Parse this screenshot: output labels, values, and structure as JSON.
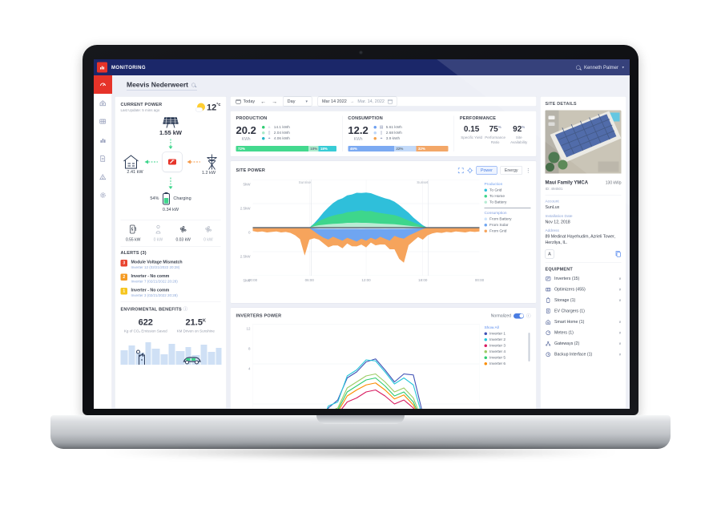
{
  "topbar": {
    "brand": "MONITORING",
    "user_name": "Kenneth Palmer",
    "caret_glyph": "▾",
    "search_icon": "magnifier-icon"
  },
  "page_header": {
    "site_name": "Meevis Nederweert"
  },
  "sidebar": {
    "items": [
      {
        "icon": "dashboard-gauge-icon",
        "active": true
      },
      {
        "icon": "site-layout-icon"
      },
      {
        "icon": "panel-grid-icon"
      },
      {
        "icon": "charts-icon"
      },
      {
        "icon": "reports-icon"
      },
      {
        "icon": "alerts-triangle-icon"
      },
      {
        "icon": "settings-gear-icon"
      }
    ]
  },
  "current_power": {
    "title": "CURRENT POWER",
    "subtitle": "Last Update: 5 mins ago",
    "temperature": "12",
    "temp_unit": "°c",
    "pv_power": "1.55 kW",
    "home_power": "2.41 kW",
    "grid_power": "1.2 kW",
    "battery_soc": "54%",
    "battery_status": "Charging",
    "battery_power": "0.34 kW",
    "loads": [
      {
        "icon": "ev-charger-icon",
        "value": "0.55 kW",
        "active": true
      },
      {
        "icon": "water-heater-icon",
        "value": "0 kW",
        "active": false
      },
      {
        "icon": "fan-icon",
        "value": "0.03 kW",
        "active": true
      },
      {
        "icon": "fan-icon",
        "value": "0 kW",
        "active": false
      }
    ]
  },
  "alerts": {
    "title": "ALERTS (3)",
    "items": [
      {
        "badge": "3",
        "color": "#e8432e",
        "title": "Module Voltage Mismatch",
        "detail": "Inverter 12 (02/21/2022 20:28)"
      },
      {
        "badge": "2",
        "color": "#f59b23",
        "title": "Inverter - No comm",
        "detail": "Inverter 7 (02/21/2022 20:28)"
      },
      {
        "badge": "1",
        "color": "#f6c51d",
        "title": "Inverter - No comm",
        "detail": "Inverter 3 (02/21/2022 20:28)"
      }
    ]
  },
  "environment": {
    "title": "ENVIROMENTAL BENEFITS",
    "info_glyph": "ⓘ",
    "co2_value": "622",
    "co2_caption": "Kg of CO₂ Emission Saved",
    "km_value": "21.5",
    "km_suffix": "K",
    "km_caption": "KM Driven on Sunshine"
  },
  "toolbar": {
    "today_label": "Today",
    "prev_glyph": "←",
    "next_glyph": "→",
    "period_value": "Day",
    "caret_glyph": "▾",
    "date_start": "Mar 14 2022",
    "range_arrow": "→",
    "date_end": "Mar. 14, 2022"
  },
  "production": {
    "title": "PRODUCTION",
    "total": "20.2",
    "unit": "KWh",
    "rows": [
      {
        "icon": "home-icon",
        "value": "14.1 kWh",
        "dot": "#2ecc71"
      },
      {
        "icon": "battery-icon",
        "value": "2.04 kWh",
        "dot": "#a9e9c8"
      },
      {
        "icon": "grid-tower-icon",
        "value": "4.06 kWh",
        "dot": "#23b5c8"
      }
    ],
    "bar": [
      {
        "label": "72%",
        "w": "72%",
        "bg": "#43d98e",
        "fg": "#ffffff"
      },
      {
        "label": "10%",
        "w": "10%",
        "bg": "#aeeccd",
        "fg": "#64727e"
      },
      {
        "label": "18%",
        "w": "18%",
        "bg": "#38ccd6",
        "fg": "#ffffff"
      }
    ]
  },
  "consumption": {
    "title": "CONSUMPTION",
    "total": "12.2",
    "unit": "KWh",
    "rows": [
      {
        "icon": "solar-panel-icon",
        "value": "5.61 kWh",
        "dot": "#6d9ff0"
      },
      {
        "icon": "battery-icon",
        "value": "2.68 kWh",
        "dot": "#bcd6f9"
      },
      {
        "icon": "grid-tower-icon",
        "value": "3.9 kWh",
        "dot": "#f5a24b"
      }
    ],
    "bar": [
      {
        "label": "46%",
        "w": "46%",
        "bg": "#7caaf2",
        "fg": "#ffffff"
      },
      {
        "label": "22%",
        "w": "22%",
        "bg": "#c3daf9",
        "fg": "#64727e"
      },
      {
        "label": "32%",
        "w": "32%",
        "bg": "#f3a768",
        "fg": "#ffffff"
      }
    ]
  },
  "performance": {
    "title": "PERFORMANCE",
    "stats": [
      {
        "value": "0.15",
        "suffix": "",
        "label": "Specific Yield"
      },
      {
        "value": "75",
        "suffix": "%",
        "label": "Performance Ratio"
      },
      {
        "value": "92",
        "suffix": "%",
        "label": "Site Availability"
      }
    ]
  },
  "site_power": {
    "title": "SITE POWER",
    "power_label": "Power",
    "energy_label": "Energy",
    "kebab_glyph": "⋮",
    "production_header": "Production",
    "consumption_header": "Consumption"
  },
  "inverters_power": {
    "title": "INVERTERS POWER",
    "normalized_label": "Normalized",
    "info_glyph": "ⓘ",
    "show_all": "Show All"
  },
  "site_details": {
    "title": "SITE DETAILS",
    "name": "Maui Family YMCA",
    "capacity": "130 kWp",
    "id": "ID: 494501",
    "account_label": "Account",
    "account": "SunLux",
    "install_label": "Installation Date",
    "install_date": "Nov 12, 2018",
    "address_label": "Address",
    "address": "89 Medinat Hayehudim, Azrieli Tower, Herzliya, IL.",
    "marker_glyph": "A"
  },
  "equipment": {
    "title": "EQUIPMENT",
    "rows": [
      {
        "icon": "inverter-icon",
        "label": "Inverters (15)",
        "chevron": "∨"
      },
      {
        "icon": "optimizer-icon",
        "label": "Optimizers (455)",
        "chevron": "∨"
      },
      {
        "icon": "storage-battery-icon",
        "label": "Storage (1)",
        "chevron": "∨"
      },
      {
        "icon": "ev-charger-icon",
        "label": "EV Chargers (1)",
        "chevron": ""
      },
      {
        "icon": "smart-home-icon",
        "label": "Smart Home (1)",
        "chevron": "∨"
      },
      {
        "icon": "meter-icon",
        "label": "Meters (1)",
        "chevron": "∨"
      },
      {
        "icon": "gateway-icon",
        "label": "Gateways (2)",
        "chevron": "∨"
      },
      {
        "icon": "backup-interface-icon",
        "label": "Backup Interface (1)",
        "chevron": "∨"
      }
    ]
  },
  "chart_data": [
    {
      "id": "site-power",
      "type": "area",
      "title": "SITE POWER",
      "ylim": [
        -5,
        5
      ],
      "yticks": [
        "5kW",
        "2.5kW",
        "0",
        "2.5kW",
        "5kW"
      ],
      "xticks": [
        "00:00",
        "06:00",
        "12:00",
        "18:00",
        "00:00"
      ],
      "sunrise_hour": 6.2,
      "sunset_hour": 18.6,
      "sunrise_label": "Sunrise",
      "sunset_label": "Sunset",
      "x_step_hours": 0.5,
      "production_stack": [
        {
          "name": "To Battery",
          "color": "#b9ecd4",
          "values": [
            0,
            0,
            0,
            0,
            0,
            0,
            0,
            0,
            0,
            0,
            0,
            0,
            0,
            0.15,
            0.25,
            0.3,
            0.35,
            0.4,
            0.42,
            0.45,
            0.5,
            0.5,
            0.52,
            0.5,
            0.5,
            0.48,
            0.45,
            0.42,
            0.4,
            0.38,
            0.35,
            0.3,
            0.25,
            0.2,
            0.15,
            0.1,
            0.05,
            0,
            0,
            0,
            0,
            0,
            0,
            0,
            0,
            0,
            0,
            0,
            0
          ]
        },
        {
          "name": "To Home",
          "color": "#3ed68c",
          "values": [
            0,
            0,
            0,
            0,
            0,
            0,
            0,
            0,
            0,
            0,
            0,
            0,
            0,
            0.2,
            0.45,
            0.6,
            0.75,
            0.85,
            0.95,
            1.0,
            1.1,
            1.15,
            1.2,
            1.3,
            1.2,
            1.25,
            1.15,
            1.1,
            1.05,
            1.0,
            0.95,
            0.85,
            0.7,
            0.55,
            0.4,
            0.25,
            0.1,
            0,
            0,
            0,
            0,
            0,
            0,
            0,
            0,
            0,
            0,
            0,
            0
          ]
        },
        {
          "name": "To Grid",
          "color": "#2fbfda",
          "values": [
            0,
            0,
            0,
            0,
            0,
            0,
            0,
            0,
            0,
            0,
            0,
            0,
            0,
            0.1,
            0.3,
            0.7,
            1.0,
            1.3,
            1.5,
            1.6,
            1.75,
            1.8,
            1.9,
            1.8,
            1.95,
            1.85,
            1.8,
            1.7,
            1.6,
            1.55,
            1.4,
            1.2,
            1.0,
            0.8,
            0.5,
            0.3,
            0.1,
            0,
            0,
            0,
            0,
            0,
            0,
            0,
            0,
            0,
            0,
            0,
            0
          ]
        }
      ],
      "consumption_stack": [
        {
          "name": "From Battery",
          "color": "#cfe4fb",
          "values": [
            0,
            0,
            0,
            0,
            0,
            0,
            0,
            0,
            0,
            0,
            0,
            0,
            0.05,
            0.1,
            0.15,
            0.15,
            0.14,
            0.15,
            0.16,
            0.15,
            0.15,
            0.14,
            0.15,
            0.16,
            0.15,
            0.15,
            0.14,
            0.15,
            0.16,
            0.15,
            0.15,
            0.14,
            0.15,
            0.12,
            0.1,
            0.08,
            0.05,
            0,
            0,
            0,
            0,
            0,
            0,
            0,
            0,
            0,
            0,
            0,
            0
          ]
        },
        {
          "name": "From Solar",
          "color": "#6fa5f1",
          "values": [
            0,
            0,
            0,
            0,
            0,
            0,
            0,
            0,
            0,
            0,
            0,
            0,
            0,
            0.3,
            0.6,
            0.9,
            1.1,
            0.8,
            1.0,
            1.2,
            0.9,
            1.1,
            1.3,
            1.0,
            1.2,
            0.9,
            1.1,
            0.8,
            1.0,
            1.2,
            0.7,
            0.9,
            1.0,
            0.7,
            0.5,
            0.3,
            0.1,
            0,
            0,
            0,
            0,
            0,
            0,
            0,
            0,
            0,
            0,
            0,
            0
          ]
        },
        {
          "name": "From Grid",
          "color": "#f6a45c",
          "values": [
            0.35,
            0.45,
            0.4,
            0.5,
            0.45,
            0.4,
            0.5,
            0.45,
            0.55,
            0.8,
            1.2,
            2.9,
            1.2,
            0.7,
            0.5,
            0.6,
            0.8,
            0.9,
            0.7,
            0.8,
            0.6,
            0.7,
            0.5,
            0.6,
            0.7,
            0.5,
            0.6,
            0.8,
            0.6,
            0.9,
            1.4,
            2.2,
            2.5,
            1.0,
            0.8,
            0.6,
            1.1,
            0.8,
            0.6,
            0.5,
            0.55,
            0.45,
            0.5,
            0.4,
            0.45,
            0.5,
            0.4,
            0.45,
            0.4
          ]
        }
      ]
    },
    {
      "id": "inverters-power",
      "type": "line",
      "ylim": [
        0,
        12
      ],
      "yticks": [
        "12",
        "8",
        "4"
      ],
      "x_step_hours": 1,
      "series": [
        {
          "name": "Inverter 1",
          "color": "#3f51b5",
          "values": [
            0,
            0,
            0,
            0,
            0,
            0,
            0.2,
            1.2,
            3.6,
            4.4,
            6.6,
            7.2,
            8.2,
            8.5,
            7.4,
            6.2,
            7.0,
            6.9,
            3.0,
            1.0,
            0.2,
            0,
            0,
            0,
            0
          ]
        },
        {
          "name": "Inverter 2",
          "color": "#26c6da",
          "values": [
            0,
            0,
            0,
            0,
            0,
            0,
            0.3,
            1.4,
            3.8,
            4.2,
            6.8,
            7.4,
            8.4,
            8.3,
            7.2,
            6.0,
            6.6,
            5.9,
            2.6,
            0.8,
            0.1,
            0,
            0,
            0,
            0
          ]
        },
        {
          "name": "Inverter 3",
          "color": "#d81b60",
          "values": [
            0,
            0,
            0,
            0,
            0,
            0,
            0.2,
            0.9,
            2.6,
            3.0,
            4.2,
            4.6,
            5.2,
            5.4,
            4.8,
            4.0,
            4.4,
            3.6,
            1.8,
            0.5,
            0,
            0,
            0,
            0,
            0
          ]
        },
        {
          "name": "Inverter 4",
          "color": "#9ccc65",
          "values": [
            0,
            0,
            0,
            0,
            0,
            0,
            0.2,
            1.1,
            3.2,
            3.6,
            5.6,
            6.2,
            6.8,
            7.0,
            6.2,
            5.2,
            5.6,
            4.6,
            2.2,
            0.7,
            0,
            0,
            0,
            0,
            0
          ]
        },
        {
          "name": "Inverter 5",
          "color": "#2ecc71",
          "values": [
            0,
            0,
            0,
            0,
            0,
            0,
            0.25,
            1.0,
            3.0,
            3.4,
            5.2,
            5.8,
            6.4,
            6.6,
            5.8,
            4.8,
            5.2,
            4.2,
            2.0,
            0.6,
            0,
            0,
            0,
            0,
            0
          ]
        },
        {
          "name": "Inverter 6",
          "color": "#fb8c00",
          "values": [
            0,
            0,
            0,
            0,
            0,
            0,
            0.2,
            1.0,
            2.8,
            3.2,
            4.8,
            5.4,
            5.9,
            6.1,
            5.4,
            4.5,
            4.9,
            3.9,
            1.9,
            0.5,
            0,
            0,
            0,
            0,
            0
          ]
        }
      ]
    }
  ]
}
